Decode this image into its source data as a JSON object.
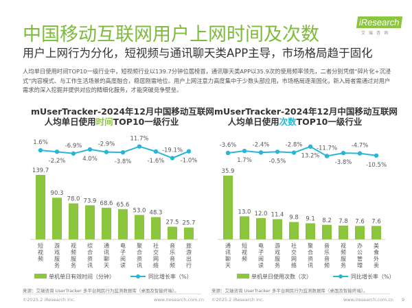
{
  "header": {
    "title": "中国移动互联网用户上网时间及次数",
    "subtitle": "用户上网行为分化，短视频与通讯聊天类APP主导，市场格局趋于固化",
    "description": "人均单日使用时间TOP10一级行业中，短视频行业以139.7分钟位居榜首，通讯聊天类APP以35.9次的使用频率领先，二者分别凭借“碎片化+沉浸式”内容模式、与工作生活场景的高度融合，稳居刚需地位。用户上网注意力高度集中于少数头部应用，市场格局逐渐固化，新入局者需通过对用户需求的深入挖掘并提供对应的精细化服务，才能突破竞争壁垒。"
  },
  "logo": {
    "brand": "iResearch",
    "sub": "艾瑞咨询"
  },
  "colors": {
    "bar": "#8cc63f",
    "line": "#29b6d6",
    "title": "#7dbb3c"
  },
  "chart_data": [
    {
      "type": "bar+line",
      "title_line1": "mUserTracker-2024年12月中国移动互联网",
      "title_pre": "人均单日使用",
      "title_hl": "时间",
      "title_post": "TOP10一级行业",
      "categories": [
        "短视频",
        "游戏服务",
        "视频服务",
        "综合资讯",
        "通讯聊天",
        "电子阅读",
        "聚合资讯",
        "社交网络",
        "音乐音频",
        "旅游出行"
      ],
      "series": [
        {
          "name": "单机单日有效时间（分钟）",
          "type": "bar",
          "values": [
            139.7,
            90.3,
            78.0,
            73.9,
            68.6,
            65.6,
            53.0,
            48.3,
            27.5,
            25.7
          ],
          "labels": [
            "139.7",
            "90.3",
            "78.0",
            "73.9",
            "68.6",
            "65.6",
            "53.0",
            "48.3",
            "27.5",
            "25.7"
          ]
        },
        {
          "name": "同比增长率（%）",
          "type": "line",
          "values": [
            1.6,
            -2.2,
            -6.9,
            4.0,
            -2.9,
            -3.8,
            11.7,
            -1.6,
            -19.1,
            -1.0
          ],
          "labels": [
            "1.6%",
            "-2.2%",
            "-6.9%",
            "4.0%",
            "-2.9%",
            "-3.8%",
            "11.7%",
            "-1.6%",
            "-19.1%",
            "-1.0%"
          ]
        }
      ],
      "legend": "bottom",
      "source": "来源：艾瑞咨询 UserTracker 多平台网民行为监测数据库（桌面及智能终端）。"
    },
    {
      "type": "bar+line",
      "title_line1": "mUserTracker-2024年12月中国移动互联网",
      "title_pre": "人均单日使用",
      "title_hl": "次数",
      "title_post": "TOP10一级行业",
      "categories": [
        "通讯聊天",
        "短视频",
        "电子阅读",
        "游戏服务",
        "社交网络",
        "聚合资讯",
        "音乐音频",
        "视频服务",
        "办公管理",
        "美食外卖"
      ],
      "series": [
        {
          "name": "单机单日使用次数（次）",
          "type": "bar",
          "values": [
            35.9,
            13.0,
            12.0,
            11.4,
            9.8,
            9.1,
            8.2,
            7.8,
            7.6,
            7.6
          ],
          "labels": [
            "35.9",
            "13.0",
            "12.0",
            "11.4",
            "9.8",
            "9.1",
            "8.2",
            "7.8",
            "7.6",
            "7.6"
          ]
        },
        {
          "name": "同比增长率（%）",
          "type": "line",
          "values": [
            -3.6,
            1.7,
            -2.4,
            -0.5,
            -2.8,
            13.2,
            -11.7,
            -3.8,
            -4.7,
            -10.5
          ],
          "labels": [
            "-3.6%",
            "1.7%",
            "-2.4%",
            "-0.5%",
            "-2.8%",
            "13.2%",
            "-11.7%",
            "-3.8%",
            "-4.7%",
            "-10.5%"
          ]
        }
      ],
      "legend": "bottom",
      "source": "来源：艾瑞咨询 UserTracker 多平台网民行为监测数据库（桌面及智能终端）。"
    }
  ],
  "footer": {
    "copyright": "©2025.2 iResearch Inc.",
    "url": "www.iresearch.com.cn",
    "page": "9"
  }
}
